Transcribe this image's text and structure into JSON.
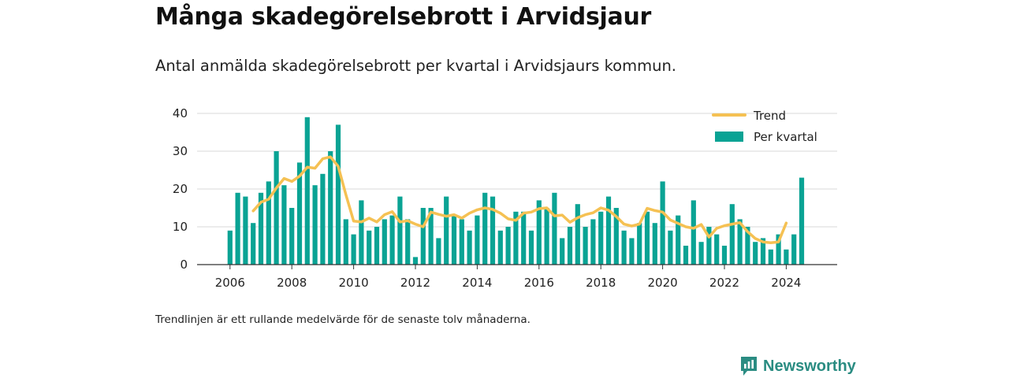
{
  "header": {
    "title": "Många skadegörelsebrott i Arvidsjaur",
    "subtitle": "Antal anmälda skadegörelsebrott per kvartal i Arvidsjaurs kommun."
  },
  "footer": {
    "note": "Trendlinjen är ett rullande medelvärde för de senaste tolv månaderna.",
    "brand": "Newsworthy"
  },
  "colors": {
    "bar": "#0aa394",
    "trend": "#f5c153",
    "grid": "#d9d9d9",
    "axis": "#333333",
    "brand": "#2a8c82"
  },
  "chart_data": {
    "type": "bar",
    "x_unit": "quarter",
    "x_start": "2006 Q1",
    "x_ticks": [
      "2006",
      "2008",
      "2010",
      "2012",
      "2014",
      "2016",
      "2018",
      "2020",
      "2022",
      "2024"
    ],
    "ylim": [
      0,
      40
    ],
    "y_ticks": [
      "0",
      "10",
      "20",
      "30",
      "40"
    ],
    "grid": true,
    "legend_position": "top-right",
    "series": [
      {
        "name": "Per kvartal",
        "type": "bar",
        "values": [
          9,
          19,
          18,
          11,
          19,
          22,
          30,
          21,
          15,
          27,
          39,
          21,
          24,
          30,
          37,
          12,
          8,
          17,
          9,
          10,
          12,
          13,
          18,
          12,
          2,
          15,
          15,
          7,
          18,
          13,
          12,
          9,
          13,
          19,
          18,
          9,
          10,
          14,
          14,
          9,
          17,
          15,
          19,
          7,
          10,
          16,
          10,
          12,
          14,
          18,
          15,
          9,
          7,
          11,
          14,
          11,
          22,
          9,
          13,
          5,
          17,
          6,
          10,
          8,
          5,
          16,
          12,
          10,
          6,
          7,
          4,
          8,
          4,
          8,
          23
        ]
      },
      {
        "name": "Trend",
        "type": "line",
        "start_quarter": "2006 Q4",
        "values": [
          14.2,
          16.5,
          17.3,
          20.3,
          22.8,
          22.0,
          23.4,
          25.8,
          25.5,
          28.0,
          28.5,
          26.0,
          18.5,
          11.5,
          11.3,
          12.3,
          11.3,
          13.2,
          14.0,
          11.3,
          11.6,
          10.7,
          10.0,
          13.9,
          13.3,
          12.8,
          13.2,
          12.3,
          13.6,
          14.5,
          15.0,
          14.6,
          13.6,
          12.1,
          11.7,
          13.6,
          13.9,
          14.8,
          15.0,
          12.9,
          13.1,
          11.2,
          12.4,
          13.2,
          13.7,
          15.0,
          14.4,
          12.7,
          10.7,
          10.2,
          10.7,
          14.9,
          14.3,
          13.9,
          11.8,
          10.9,
          10.0,
          9.6,
          10.6,
          7.3,
          9.6,
          10.3,
          10.7,
          11.1,
          8.7,
          6.9,
          6.0,
          5.8,
          6.0,
          11.0
        ]
      }
    ]
  }
}
